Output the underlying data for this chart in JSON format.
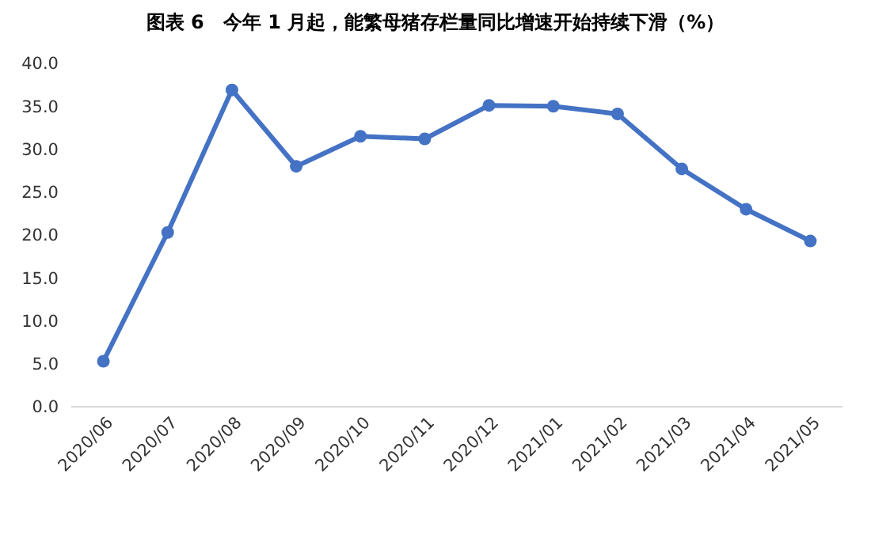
{
  "chart_data": {
    "type": "line",
    "title": "图表 6　今年 1 月起，能繁母猪存栏量同比增速开始持续下滑（%）",
    "categories": [
      "2020/06",
      "2020/07",
      "2020/08",
      "2020/09",
      "2020/10",
      "2020/11",
      "2020/12",
      "2021/01",
      "2021/02",
      "2021/03",
      "2021/04",
      "2021/05"
    ],
    "series": [
      {
        "color": "#4472c4",
        "values": [
          5.3,
          20.3,
          36.9,
          28.0,
          31.5,
          31.2,
          35.1,
          35.0,
          34.1,
          27.7,
          23.0,
          19.3
        ]
      }
    ],
    "ylim": [
      0,
      40
    ],
    "yticks": [
      {
        "value": 0,
        "label": "0.0"
      },
      {
        "value": 5,
        "label": "5.0"
      },
      {
        "value": 10,
        "label": "10.0"
      },
      {
        "value": 15,
        "label": "15.0"
      },
      {
        "value": 20,
        "label": "20.0"
      },
      {
        "value": 25,
        "label": "25.0"
      },
      {
        "value": 30,
        "label": "30.0"
      },
      {
        "value": 35,
        "label": "35.0"
      },
      {
        "value": 40,
        "label": "40.0"
      }
    ],
    "marker": "circle",
    "line_style": "solid"
  }
}
